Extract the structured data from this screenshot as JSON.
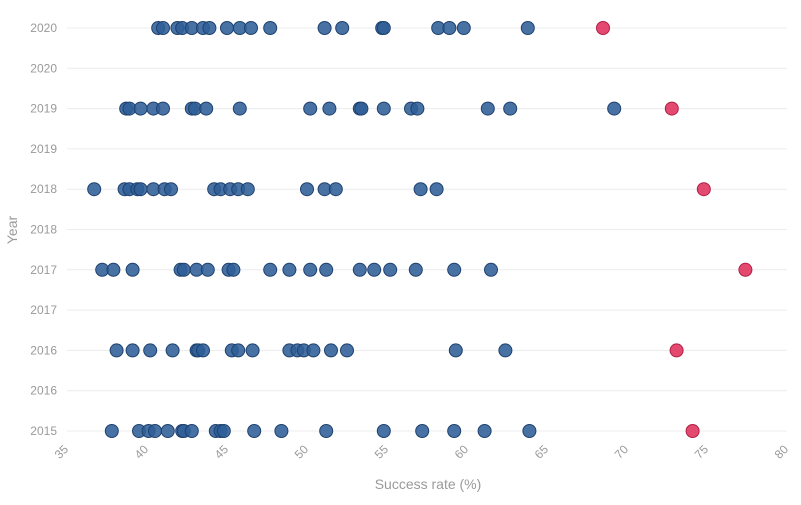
{
  "chart_data": {
    "type": "scatter",
    "xlabel": "Success rate (%)",
    "ylabel": "Year",
    "xlim": [
      35,
      80
    ],
    "x_ticks": [
      "35",
      "40",
      "45",
      "50",
      "55",
      "60",
      "65",
      "70",
      "75",
      "80"
    ],
    "y_ticks": [
      "2015",
      "2016",
      "2016",
      "2017",
      "2017",
      "2018",
      "2018",
      "2019",
      "2019",
      "2020",
      "2020"
    ],
    "grid": "horizontal",
    "colors": {
      "others": "#2f5f97",
      "highlight": "#e0315c"
    },
    "series": [
      {
        "key": "others",
        "points": [
          {
            "x": 37.8,
            "y": 2015
          },
          {
            "x": 39.5,
            "y": 2015
          },
          {
            "x": 40.1,
            "y": 2015
          },
          {
            "x": 40.5,
            "y": 2015
          },
          {
            "x": 41.3,
            "y": 2015
          },
          {
            "x": 42.2,
            "y": 2015
          },
          {
            "x": 42.3,
            "y": 2015
          },
          {
            "x": 42.8,
            "y": 2015
          },
          {
            "x": 44.3,
            "y": 2015
          },
          {
            "x": 44.6,
            "y": 2015
          },
          {
            "x": 44.8,
            "y": 2015
          },
          {
            "x": 46.7,
            "y": 2015
          },
          {
            "x": 48.4,
            "y": 2015
          },
          {
            "x": 51.2,
            "y": 2015
          },
          {
            "x": 54.8,
            "y": 2015
          },
          {
            "x": 57.2,
            "y": 2015
          },
          {
            "x": 59.2,
            "y": 2015
          },
          {
            "x": 61.1,
            "y": 2015
          },
          {
            "x": 63.9,
            "y": 2015
          },
          {
            "x": 38.1,
            "y": 2016
          },
          {
            "x": 39.1,
            "y": 2016
          },
          {
            "x": 40.2,
            "y": 2016
          },
          {
            "x": 41.6,
            "y": 2016
          },
          {
            "x": 43.1,
            "y": 2016
          },
          {
            "x": 43.2,
            "y": 2016
          },
          {
            "x": 43.5,
            "y": 2016
          },
          {
            "x": 45.3,
            "y": 2016
          },
          {
            "x": 45.7,
            "y": 2016
          },
          {
            "x": 46.6,
            "y": 2016
          },
          {
            "x": 48.9,
            "y": 2016
          },
          {
            "x": 49.4,
            "y": 2016
          },
          {
            "x": 49.8,
            "y": 2016
          },
          {
            "x": 50.4,
            "y": 2016
          },
          {
            "x": 51.5,
            "y": 2016
          },
          {
            "x": 52.5,
            "y": 2016
          },
          {
            "x": 59.3,
            "y": 2016
          },
          {
            "x": 62.4,
            "y": 2016
          },
          {
            "x": 37.2,
            "y": 2017
          },
          {
            "x": 37.9,
            "y": 2017
          },
          {
            "x": 39.1,
            "y": 2017
          },
          {
            "x": 42.1,
            "y": 2017
          },
          {
            "x": 42.3,
            "y": 2017
          },
          {
            "x": 43.1,
            "y": 2017
          },
          {
            "x": 43.8,
            "y": 2017
          },
          {
            "x": 45.1,
            "y": 2017
          },
          {
            "x": 45.4,
            "y": 2017
          },
          {
            "x": 47.7,
            "y": 2017
          },
          {
            "x": 48.9,
            "y": 2017
          },
          {
            "x": 50.2,
            "y": 2017
          },
          {
            "x": 51.2,
            "y": 2017
          },
          {
            "x": 53.3,
            "y": 2017
          },
          {
            "x": 54.2,
            "y": 2017
          },
          {
            "x": 55.2,
            "y": 2017
          },
          {
            "x": 56.8,
            "y": 2017
          },
          {
            "x": 59.2,
            "y": 2017
          },
          {
            "x": 61.5,
            "y": 2017
          },
          {
            "x": 36.7,
            "y": 2018
          },
          {
            "x": 38.6,
            "y": 2018
          },
          {
            "x": 38.9,
            "y": 2018
          },
          {
            "x": 39.4,
            "y": 2018
          },
          {
            "x": 39.6,
            "y": 2018
          },
          {
            "x": 40.4,
            "y": 2018
          },
          {
            "x": 41.1,
            "y": 2018
          },
          {
            "x": 41.5,
            "y": 2018
          },
          {
            "x": 44.2,
            "y": 2018
          },
          {
            "x": 44.6,
            "y": 2018
          },
          {
            "x": 45.2,
            "y": 2018
          },
          {
            "x": 45.7,
            "y": 2018
          },
          {
            "x": 46.3,
            "y": 2018
          },
          {
            "x": 50.0,
            "y": 2018
          },
          {
            "x": 51.1,
            "y": 2018
          },
          {
            "x": 51.8,
            "y": 2018
          },
          {
            "x": 57.1,
            "y": 2018
          },
          {
            "x": 58.1,
            "y": 2018
          },
          {
            "x": 38.7,
            "y": 2019
          },
          {
            "x": 38.9,
            "y": 2019
          },
          {
            "x": 39.6,
            "y": 2019
          },
          {
            "x": 40.4,
            "y": 2019
          },
          {
            "x": 41.0,
            "y": 2019
          },
          {
            "x": 42.8,
            "y": 2019
          },
          {
            "x": 43.0,
            "y": 2019
          },
          {
            "x": 43.7,
            "y": 2019
          },
          {
            "x": 45.8,
            "y": 2019
          },
          {
            "x": 50.2,
            "y": 2019
          },
          {
            "x": 51.4,
            "y": 2019
          },
          {
            "x": 53.3,
            "y": 2019
          },
          {
            "x": 53.4,
            "y": 2019
          },
          {
            "x": 54.8,
            "y": 2019
          },
          {
            "x": 56.5,
            "y": 2019
          },
          {
            "x": 56.9,
            "y": 2019
          },
          {
            "x": 61.3,
            "y": 2019
          },
          {
            "x": 62.7,
            "y": 2019
          },
          {
            "x": 69.2,
            "y": 2019
          },
          {
            "x": 40.7,
            "y": 2020
          },
          {
            "x": 41.0,
            "y": 2020
          },
          {
            "x": 41.9,
            "y": 2020
          },
          {
            "x": 42.2,
            "y": 2020
          },
          {
            "x": 42.8,
            "y": 2020
          },
          {
            "x": 43.5,
            "y": 2020
          },
          {
            "x": 43.9,
            "y": 2020
          },
          {
            "x": 45.0,
            "y": 2020
          },
          {
            "x": 45.8,
            "y": 2020
          },
          {
            "x": 46.5,
            "y": 2020
          },
          {
            "x": 47.7,
            "y": 2020
          },
          {
            "x": 51.1,
            "y": 2020
          },
          {
            "x": 52.2,
            "y": 2020
          },
          {
            "x": 54.7,
            "y": 2020
          },
          {
            "x": 54.8,
            "y": 2020
          },
          {
            "x": 58.2,
            "y": 2020
          },
          {
            "x": 58.9,
            "y": 2020
          },
          {
            "x": 59.8,
            "y": 2020
          },
          {
            "x": 63.8,
            "y": 2020
          }
        ]
      },
      {
        "key": "highlight",
        "points": [
          {
            "x": 74.1,
            "y": 2015
          },
          {
            "x": 73.1,
            "y": 2016
          },
          {
            "x": 77.4,
            "y": 2017
          },
          {
            "x": 74.8,
            "y": 2018
          },
          {
            "x": 72.8,
            "y": 2019
          },
          {
            "x": 68.5,
            "y": 2020
          }
        ]
      }
    ]
  }
}
